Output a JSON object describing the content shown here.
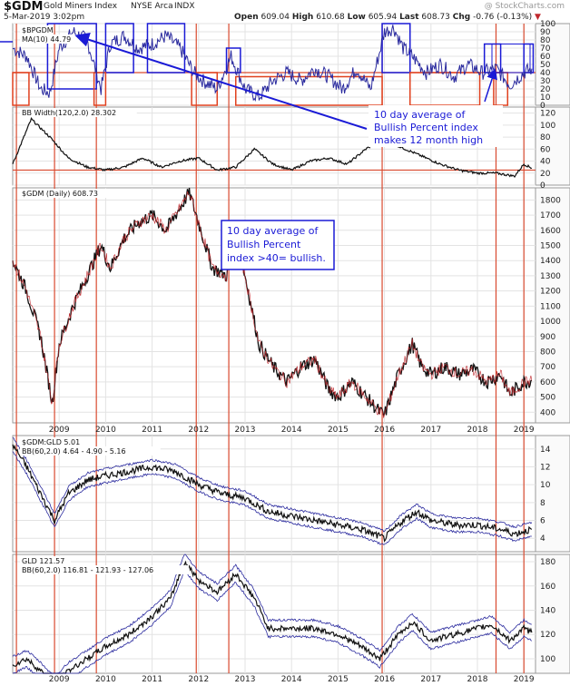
{
  "header": {
    "symbol": "$GDM",
    "name": "Gold Miners Index",
    "exchange": "NYSE Arca",
    "tag": "INDX",
    "date": "5-Mar-2019 3:02pm",
    "open_label": "Open",
    "open": "609.04",
    "high_label": "High",
    "high": "610.68",
    "low_label": "Low",
    "low": "605.94",
    "last_label": "Last",
    "last": "608.73",
    "chg_label": "Chg",
    "chg": "-0.76 (-0.13%)",
    "watermark": "@ StockCharts.com"
  },
  "annotations": {
    "bullish_12m": [
      "10 day average of",
      "Bullish Percent index",
      "makes 12 month high"
    ],
    "bullish_40": [
      "10 day average of",
      "Bullish Percent",
      "index >40= bullish."
    ]
  },
  "colors": {
    "frame": "#9a9a9a",
    "price": "#111111",
    "down": "#c0282d",
    "band": "#2a2a9e",
    "ref_line": "#d94a2f",
    "highlight_blue": "#1a1ad6",
    "highlight_red": "#e0401e",
    "note_text": "#1a1ad6"
  },
  "chart_data": [
    {
      "type": "line",
      "panel": "BPGDM",
      "title": "$BPGDM",
      "legend": "MA(10) 44.79",
      "ylim": [
        0,
        100
      ],
      "yticks": [
        "100",
        "90",
        "80",
        "70",
        "60",
        "50",
        "40",
        "30",
        "20",
        "10",
        "0"
      ],
      "series": [
        {
          "name": "MA(10)",
          "x": [
            2008.0,
            2008.3,
            2008.6,
            2008.8,
            2009.0,
            2009.3,
            2009.6,
            2009.9,
            2010.1,
            2010.4,
            2010.7,
            2011.0,
            2011.3,
            2011.6,
            2011.9,
            2012.1,
            2012.4,
            2012.7,
            2013.0,
            2013.3,
            2013.6,
            2013.9,
            2014.2,
            2014.5,
            2014.8,
            2015.1,
            2015.4,
            2015.7,
            2016.0,
            2016.2,
            2016.4,
            2016.6,
            2016.9,
            2017.2,
            2017.5,
            2017.8,
            2018.1,
            2018.4,
            2018.7,
            2019.0,
            2019.17
          ],
          "values": [
            70,
            60,
            20,
            15,
            70,
            90,
            80,
            20,
            75,
            85,
            70,
            75,
            85,
            70,
            40,
            30,
            20,
            60,
            20,
            10,
            30,
            40,
            30,
            45,
            35,
            20,
            45,
            20,
            90,
            95,
            70,
            60,
            40,
            50,
            35,
            50,
            40,
            45,
            25,
            40,
            44.79
          ]
        }
      ],
      "ref_line": 40
    },
    {
      "type": "line",
      "panel": "BB Width",
      "title": "BB Width(120,2.0) 28.302",
      "ylim": [
        0,
        130
      ],
      "yticks": [
        "120",
        "100",
        "80",
        "60",
        "40",
        "20",
        "0"
      ],
      "series": [
        {
          "name": "BB Width",
          "x": [
            2008.0,
            2008.4,
            2008.8,
            2009.2,
            2009.6,
            2010.0,
            2010.4,
            2010.8,
            2011.2,
            2011.6,
            2012.0,
            2012.4,
            2012.8,
            2013.2,
            2013.6,
            2014.0,
            2014.4,
            2014.8,
            2015.2,
            2015.6,
            2016.0,
            2016.3,
            2016.6,
            2016.9,
            2017.2,
            2017.6,
            2018.0,
            2018.4,
            2018.8,
            2019.0,
            2019.17
          ],
          "values": [
            35,
            110,
            80,
            45,
            30,
            25,
            30,
            45,
            30,
            40,
            45,
            25,
            30,
            60,
            35,
            25,
            40,
            45,
            35,
            60,
            80,
            65,
            55,
            45,
            35,
            25,
            20,
            20,
            15,
            35,
            28.302
          ]
        }
      ],
      "ref_line": 25
    },
    {
      "type": "line",
      "panel": "$GDM Daily",
      "title": "$GDM (Daily) 608.73",
      "ylim": [
        330,
        1880
      ],
      "yticks": [
        "1800",
        "1700",
        "1600",
        "1500",
        "1400",
        "1300",
        "1200",
        "1100",
        "1000",
        "900",
        "800",
        "700",
        "600",
        "500",
        "400"
      ],
      "x_ticks": [
        "2009",
        "2010",
        "2011",
        "2012",
        "2013",
        "2014",
        "2015",
        "2016",
        "2017",
        "2018",
        "2019"
      ],
      "series": [
        {
          "name": "$GDM",
          "x": [
            2008.0,
            2008.3,
            2008.6,
            2008.85,
            2009.0,
            2009.3,
            2009.6,
            2009.9,
            2010.1,
            2010.4,
            2010.7,
            2011.0,
            2011.3,
            2011.6,
            2011.8,
            2012.0,
            2012.3,
            2012.6,
            2012.8,
            2013.0,
            2013.3,
            2013.6,
            2013.9,
            2014.2,
            2014.5,
            2014.8,
            2015.0,
            2015.3,
            2015.6,
            2015.9,
            2016.0,
            2016.3,
            2016.6,
            2016.8,
            2017.0,
            2017.3,
            2017.6,
            2017.9,
            2018.2,
            2018.5,
            2018.7,
            2019.0,
            2019.17
          ],
          "values": [
            1400,
            1200,
            900,
            460,
            850,
            1100,
            1300,
            1500,
            1350,
            1550,
            1650,
            1700,
            1600,
            1750,
            1850,
            1650,
            1350,
            1300,
            1550,
            1300,
            850,
            700,
            600,
            700,
            750,
            550,
            500,
            600,
            500,
            400,
            380,
            650,
            850,
            700,
            650,
            700,
            650,
            680,
            600,
            650,
            520,
            600,
            608.73
          ]
        }
      ]
    },
    {
      "type": "line",
      "panel": "$GDM:GLD ratio",
      "title": "$GDM:GLD 5.01",
      "legend": "BB(60,2.0) 4.64 - 4.90 - 5.16",
      "ylim": [
        2.5,
        15.5
      ],
      "yticks": [
        "14",
        "12",
        "10",
        "8",
        "6",
        "4"
      ],
      "series": [
        {
          "name": "$GDM:GLD",
          "x": [
            2008.0,
            2008.3,
            2008.6,
            2008.9,
            2009.2,
            2009.6,
            2010.0,
            2010.5,
            2011.0,
            2011.5,
            2012.0,
            2012.5,
            2013.0,
            2013.5,
            2014.0,
            2014.5,
            2015.0,
            2015.5,
            2016.0,
            2016.4,
            2016.7,
            2017.0,
            2017.5,
            2018.0,
            2018.5,
            2018.8,
            2019.17
          ],
          "values": [
            14.5,
            12,
            9,
            6,
            9,
            10.5,
            11,
            11.5,
            12,
            11.5,
            10,
            9,
            8.5,
            7,
            6.5,
            6,
            5.5,
            5,
            4,
            6,
            7,
            6,
            5.5,
            5.5,
            5,
            4.5,
            5.01
          ]
        }
      ]
    },
    {
      "type": "line",
      "panel": "GLD",
      "title": "GLD 121.57",
      "legend": "BB(60,2.0) 116.81 - 121.93 - 127.06",
      "ylim": [
        88,
        186
      ],
      "yticks": [
        "180",
        "160",
        "140",
        "120",
        "100"
      ],
      "series": [
        {
          "name": "GLD",
          "x": [
            2008.0,
            2008.3,
            2008.6,
            2008.9,
            2009.2,
            2009.6,
            2010.0,
            2010.5,
            2011.0,
            2011.4,
            2011.7,
            2012.0,
            2012.4,
            2012.8,
            2013.2,
            2013.5,
            2014.0,
            2014.5,
            2015.0,
            2015.5,
            2015.9,
            2016.3,
            2016.6,
            2017.0,
            2017.5,
            2018.0,
            2018.3,
            2018.7,
            2019.0,
            2019.17
          ],
          "values": [
            95,
            100,
            90,
            78,
            90,
            100,
            110,
            120,
            135,
            150,
            180,
            165,
            155,
            170,
            150,
            125,
            125,
            125,
            120,
            110,
            100,
            120,
            130,
            115,
            120,
            125,
            128,
            115,
            125,
            121.57
          ]
        }
      ]
    }
  ]
}
